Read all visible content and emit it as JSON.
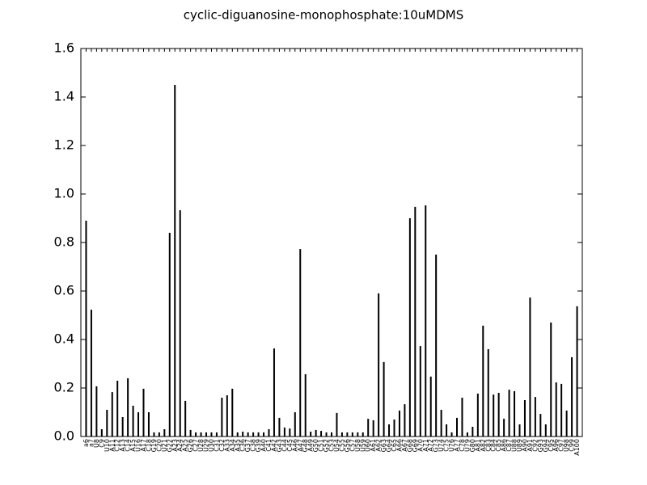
{
  "chart_data": {
    "type": "bar",
    "title": "cyclic-diguanosine-monophosphate:10uMDMS",
    "categories": [
      "a6",
      "a7",
      "U8",
      "C9",
      "U10",
      "A11",
      "C12",
      "A13",
      "C14",
      "A15",
      "U16",
      "A17",
      "C18",
      "G19",
      "C20",
      "U21",
      "G22",
      "A23",
      "A24",
      "A25",
      "G26",
      "C27",
      "U28",
      "U29",
      "U30",
      "C31",
      "C32",
      "A33",
      "A34",
      "A35",
      "C36",
      "G37",
      "C38",
      "G39",
      "A40",
      "C41",
      "A42",
      "G43",
      "C44",
      "C45",
      "A46",
      "A47",
      "G48",
      "A49",
      "G50",
      "C51",
      "G52",
      "C53",
      "U54",
      "C55",
      "G56",
      "C57",
      "U58",
      "U59",
      "U60",
      "A61",
      "A62",
      "G63",
      "G64",
      "C65",
      "A66",
      "A67",
      "G68",
      "G69",
      "A70",
      "A71",
      "A72",
      "G73",
      "U74",
      "C75",
      "U76",
      "A77",
      "C78",
      "U79",
      "G80",
      "A81",
      "A82",
      "C83",
      "C84",
      "C85",
      "A86",
      "C87",
      "U88",
      "U89",
      "A90",
      "A91",
      "C92",
      "G93",
      "G94",
      "C95",
      "A96",
      "C97",
      "U98",
      "C99",
      "A100"
    ],
    "values": [
      0.89,
      0.523,
      0.207,
      0.03,
      0.11,
      0.183,
      0.23,
      0.08,
      0.24,
      0.127,
      0.1,
      0.197,
      0.1,
      0.017,
      0.017,
      0.03,
      0.84,
      1.45,
      0.933,
      0.147,
      0.027,
      0.017,
      0.017,
      0.017,
      0.017,
      0.017,
      0.16,
      0.17,
      0.197,
      0.017,
      0.02,
      0.017,
      0.017,
      0.017,
      0.017,
      0.03,
      0.363,
      0.077,
      0.037,
      0.033,
      0.1,
      0.773,
      0.257,
      0.02,
      0.027,
      0.023,
      0.017,
      0.017,
      0.097,
      0.017,
      0.017,
      0.017,
      0.017,
      0.017,
      0.073,
      0.067,
      0.59,
      0.307,
      0.05,
      0.07,
      0.107,
      0.133,
      0.9,
      0.947,
      0.373,
      0.953,
      0.247,
      0.75,
      0.11,
      0.05,
      0.017,
      0.077,
      0.16,
      0.017,
      0.04,
      0.177,
      0.457,
      0.36,
      0.173,
      0.18,
      0.073,
      0.193,
      0.187,
      0.05,
      0.15,
      0.573,
      0.163,
      0.093,
      0.05,
      0.47,
      0.223,
      0.217,
      0.107,
      0.327,
      0.537
    ],
    "color": "#000000",
    "ylim": [
      0,
      1.6
    ],
    "yticks": [
      {
        "value": 0,
        "label": "0.0"
      },
      {
        "value": 0.2,
        "label": "0.2"
      },
      {
        "value": 0.4,
        "label": "0.4"
      },
      {
        "value": 0.6,
        "label": "0.6"
      },
      {
        "value": 0.8,
        "label": "0.8"
      },
      {
        "value": 1,
        "label": "1.0"
      },
      {
        "value": 1.2,
        "label": "1.2"
      },
      {
        "value": 1.4,
        "label": "1.4"
      },
      {
        "value": 1.6,
        "label": "1.6"
      }
    ]
  }
}
